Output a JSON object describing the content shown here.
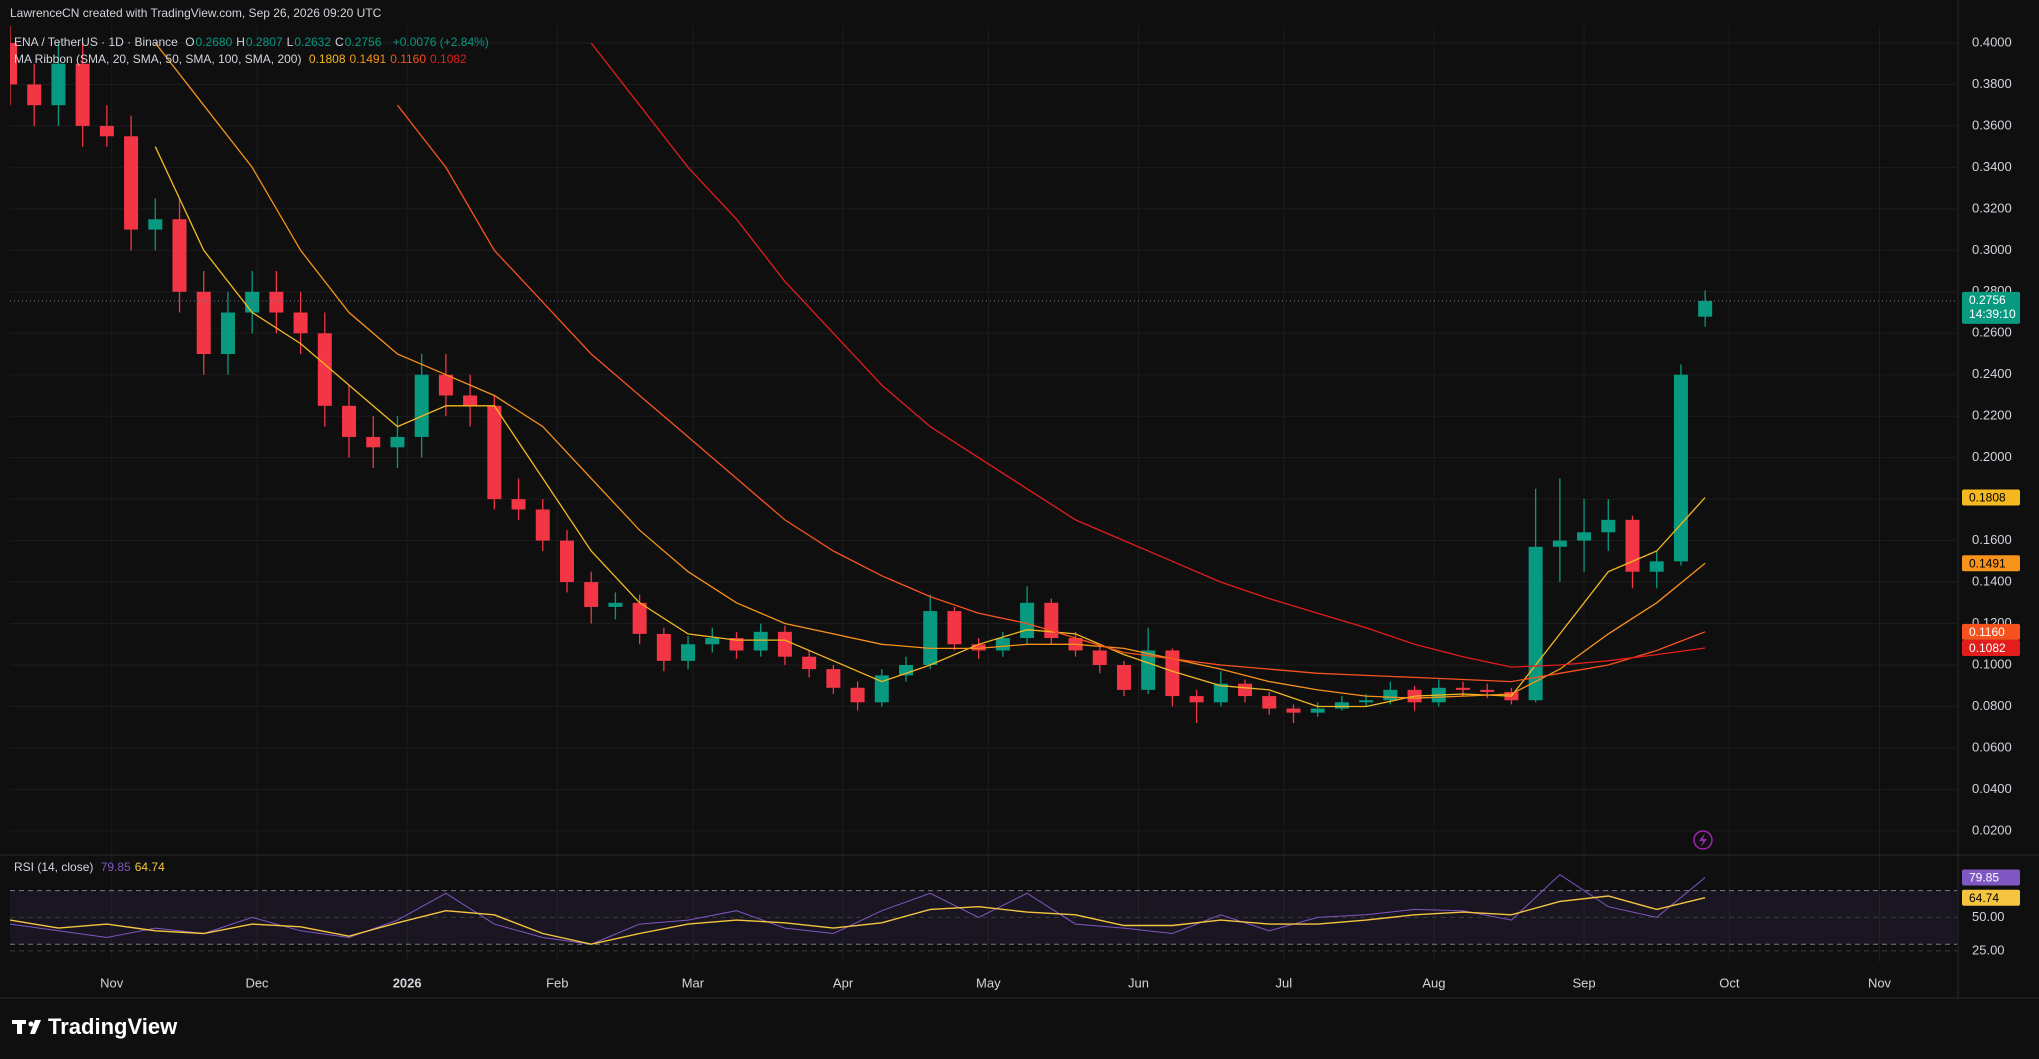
{
  "header": {
    "credit": "LawrenceCN created with TradingView.com, Sep 26, 2026 09:20 UTC"
  },
  "footer": {
    "brand": "TradingView"
  },
  "chart_data": [
    {
      "type": "candlestick",
      "title": "ENA / TetherUS · 1D · Binance",
      "ohlc": [
        {
          "label": "O",
          "value": "0.2680"
        },
        {
          "label": "H",
          "value": "0.2807"
        },
        {
          "label": "L",
          "value": "0.2632"
        },
        {
          "label": "C",
          "value": "0.2756"
        }
      ],
      "change": "+0.0076 (+2.84%)",
      "indicator": "MA Ribbon (SMA, 20, SMA, 50, SMA, 100, SMA, 200)",
      "price_tag": "0.2756",
      "countdown": "14:39:10",
      "up_color": "#089981",
      "down_color": "#f23645",
      "xlim": [
        0,
        402
      ],
      "xticks": [
        {
          "value": 21,
          "label": "Nov"
        },
        {
          "value": 51,
          "label": "Dec"
        },
        {
          "value": 82,
          "label": "2026"
        },
        {
          "value": 113,
          "label": "Feb"
        },
        {
          "value": 141,
          "label": "Mar"
        },
        {
          "value": 172,
          "label": "Apr"
        },
        {
          "value": 202,
          "label": "May"
        },
        {
          "value": 233,
          "label": "Jun"
        },
        {
          "value": 263,
          "label": "Jul"
        },
        {
          "value": 294,
          "label": "Aug"
        },
        {
          "value": 325,
          "label": "Sep"
        },
        {
          "value": 355,
          "label": "Oct"
        },
        {
          "value": 386,
          "label": "Nov"
        }
      ],
      "ylim": [
        0.0098,
        0.4082
      ],
      "yticks": [
        {
          "value": 0.02,
          "label": "0.0200"
        },
        {
          "value": 0.04,
          "label": "0.0400"
        },
        {
          "value": 0.06,
          "label": "0.0600"
        },
        {
          "value": 0.08,
          "label": "0.0800"
        },
        {
          "value": 0.1,
          "label": "0.1000"
        },
        {
          "value": 0.12,
          "label": "0.1200"
        },
        {
          "value": 0.14,
          "label": "0.1400"
        },
        {
          "value": 0.16,
          "label": "0.1600"
        },
        {
          "value": 0.18,
          "label": "0.1800"
        },
        {
          "value": 0.2,
          "label": "0.2000"
        },
        {
          "value": 0.22,
          "label": "0.2200"
        },
        {
          "value": 0.24,
          "label": "0.2400"
        },
        {
          "value": 0.26,
          "label": "0.2600"
        },
        {
          "value": 0.28,
          "label": "0.2800"
        },
        {
          "value": 0.3,
          "label": "0.3000"
        },
        {
          "value": 0.32,
          "label": "0.3200"
        },
        {
          "value": 0.34,
          "label": "0.3400"
        },
        {
          "value": 0.36,
          "label": "0.3600"
        },
        {
          "value": 0.38,
          "label": "0.3800"
        },
        {
          "value": 0.4,
          "label": "0.4000"
        }
      ],
      "grid": true,
      "candles": {
        "x": [
          0,
          5,
          10,
          15,
          20,
          25,
          30,
          35,
          40,
          45,
          50,
          55,
          60,
          65,
          70,
          75,
          80,
          85,
          90,
          95,
          100,
          105,
          110,
          115,
          120,
          125,
          130,
          135,
          140,
          145,
          150,
          155,
          160,
          165,
          170,
          175,
          180,
          185,
          190,
          195,
          200,
          205,
          210,
          215,
          220,
          225,
          230,
          235,
          240,
          245,
          250,
          255,
          260,
          265,
          270,
          275,
          280,
          285,
          290,
          295,
          300,
          305,
          310,
          315,
          320,
          325,
          330,
          335,
          340,
          345,
          350
        ],
        "open": [
          0.4,
          0.38,
          0.37,
          0.39,
          0.36,
          0.355,
          0.31,
          0.315,
          0.28,
          0.25,
          0.27,
          0.28,
          0.27,
          0.26,
          0.225,
          0.21,
          0.205,
          0.21,
          0.24,
          0.23,
          0.225,
          0.18,
          0.175,
          0.16,
          0.14,
          0.128,
          0.13,
          0.115,
          0.102,
          0.11,
          0.113,
          0.107,
          0.116,
          0.104,
          0.098,
          0.089,
          0.082,
          0.095,
          0.1,
          0.126,
          0.11,
          0.107,
          0.113,
          0.13,
          0.113,
          0.107,
          0.1,
          0.088,
          0.107,
          0.085,
          0.082,
          0.091,
          0.085,
          0.079,
          0.077,
          0.079,
          0.082,
          0.083,
          0.088,
          0.082,
          0.089,
          0.088,
          0.087,
          0.083,
          0.157,
          0.16,
          0.164,
          0.17,
          0.145,
          0.15,
          0.268
        ],
        "high": [
          0.41,
          0.39,
          0.4,
          0.4,
          0.37,
          0.365,
          0.325,
          0.325,
          0.29,
          0.28,
          0.29,
          0.29,
          0.28,
          0.27,
          0.235,
          0.22,
          0.22,
          0.25,
          0.25,
          0.24,
          0.23,
          0.19,
          0.18,
          0.165,
          0.145,
          0.135,
          0.134,
          0.118,
          0.114,
          0.118,
          0.116,
          0.12,
          0.119,
          0.107,
          0.1,
          0.092,
          0.098,
          0.104,
          0.134,
          0.128,
          0.113,
          0.116,
          0.138,
          0.132,
          0.116,
          0.11,
          0.102,
          0.118,
          0.108,
          0.088,
          0.097,
          0.093,
          0.087,
          0.081,
          0.082,
          0.085,
          0.086,
          0.092,
          0.09,
          0.093,
          0.092,
          0.091,
          0.089,
          0.185,
          0.19,
          0.18,
          0.18,
          0.172,
          0.155,
          0.245,
          0.2807
        ],
        "low": [
          0.37,
          0.36,
          0.36,
          0.35,
          0.35,
          0.3,
          0.3,
          0.27,
          0.24,
          0.24,
          0.26,
          0.26,
          0.25,
          0.215,
          0.2,
          0.195,
          0.195,
          0.2,
          0.22,
          0.215,
          0.175,
          0.17,
          0.155,
          0.135,
          0.12,
          0.122,
          0.11,
          0.097,
          0.098,
          0.106,
          0.103,
          0.104,
          0.1,
          0.094,
          0.086,
          0.078,
          0.08,
          0.092,
          0.098,
          0.107,
          0.103,
          0.104,
          0.11,
          0.11,
          0.104,
          0.096,
          0.085,
          0.086,
          0.08,
          0.072,
          0.08,
          0.082,
          0.076,
          0.072,
          0.075,
          0.078,
          0.08,
          0.081,
          0.078,
          0.08,
          0.085,
          0.084,
          0.081,
          0.082,
          0.14,
          0.145,
          0.155,
          0.137,
          0.137,
          0.148,
          0.2632
        ],
        "close": [
          0.38,
          0.37,
          0.39,
          0.36,
          0.355,
          0.31,
          0.315,
          0.28,
          0.25,
          0.27,
          0.28,
          0.27,
          0.26,
          0.225,
          0.21,
          0.205,
          0.21,
          0.24,
          0.23,
          0.225,
          0.18,
          0.175,
          0.16,
          0.14,
          0.128,
          0.13,
          0.115,
          0.102,
          0.11,
          0.113,
          0.107,
          0.116,
          0.104,
          0.098,
          0.089,
          0.082,
          0.095,
          0.1,
          0.126,
          0.11,
          0.107,
          0.113,
          0.13,
          0.113,
          0.107,
          0.1,
          0.088,
          0.107,
          0.085,
          0.082,
          0.091,
          0.085,
          0.079,
          0.077,
          0.079,
          0.082,
          0.083,
          0.088,
          0.082,
          0.089,
          0.088,
          0.087,
          0.083,
          0.157,
          0.16,
          0.164,
          0.17,
          0.145,
          0.15,
          0.24,
          0.2756
        ]
      },
      "series": [
        {
          "color": "#f5b81f",
          "tag_text": "#000000",
          "legend_value": "0.1808",
          "x": [
            0,
            10,
            20,
            30,
            40,
            50,
            60,
            70,
            80,
            90,
            100,
            110,
            120,
            130,
            140,
            150,
            160,
            170,
            180,
            190,
            200,
            210,
            220,
            230,
            240,
            250,
            260,
            270,
            280,
            290,
            300,
            310,
            320,
            330,
            340,
            350
          ],
          "values": [
            null,
            null,
            null,
            0.35,
            0.3,
            0.27,
            0.255,
            0.235,
            0.215,
            0.225,
            0.225,
            0.19,
            0.155,
            0.13,
            0.115,
            0.112,
            0.112,
            0.102,
            0.092,
            0.1,
            0.11,
            0.117,
            0.115,
            0.105,
            0.097,
            0.09,
            0.088,
            0.08,
            0.08,
            0.085,
            0.086,
            0.085,
            0.115,
            0.145,
            0.155,
            0.1808
          ]
        },
        {
          "color": "#f7931a",
          "tag_text": "#000000",
          "legend_value": "0.1491",
          "x": [
            0,
            10,
            20,
            30,
            40,
            50,
            60,
            70,
            80,
            90,
            100,
            110,
            120,
            130,
            140,
            150,
            160,
            170,
            180,
            190,
            200,
            210,
            220,
            230,
            240,
            250,
            260,
            270,
            280,
            290,
            300,
            310,
            320,
            330,
            340,
            350
          ],
          "values": [
            null,
            null,
            null,
            0.4,
            0.37,
            0.34,
            0.3,
            0.27,
            0.25,
            0.24,
            0.23,
            0.215,
            0.19,
            0.165,
            0.145,
            0.13,
            0.12,
            0.115,
            0.11,
            0.108,
            0.108,
            0.11,
            0.11,
            0.108,
            0.103,
            0.098,
            0.092,
            0.088,
            0.085,
            0.084,
            0.085,
            0.086,
            0.098,
            0.115,
            0.13,
            0.1491
          ]
        },
        {
          "color": "#f7521e",
          "tag_text": "#ffffff",
          "legend_value": "0.1160",
          "x": [
            0,
            10,
            20,
            30,
            40,
            50,
            60,
            70,
            80,
            90,
            100,
            110,
            120,
            130,
            140,
            150,
            160,
            170,
            180,
            190,
            200,
            210,
            220,
            230,
            240,
            250,
            260,
            270,
            280,
            290,
            300,
            310,
            320,
            330,
            340,
            350
          ],
          "values": [
            null,
            null,
            null,
            null,
            null,
            null,
            null,
            null,
            0.37,
            0.34,
            0.3,
            0.275,
            0.25,
            0.23,
            0.21,
            0.19,
            0.17,
            0.155,
            0.143,
            0.133,
            0.125,
            0.12,
            0.113,
            0.106,
            0.103,
            0.1,
            0.098,
            0.096,
            0.095,
            0.094,
            0.093,
            0.092,
            0.096,
            0.1,
            0.107,
            0.116
          ]
        },
        {
          "color": "#e31c1c",
          "tag_text": "#ffffff",
          "legend_value": "0.1082",
          "x": [
            0,
            10,
            20,
            30,
            40,
            50,
            60,
            70,
            80,
            90,
            100,
            110,
            120,
            130,
            140,
            150,
            160,
            170,
            180,
            190,
            200,
            210,
            220,
            230,
            240,
            250,
            260,
            270,
            280,
            290,
            300,
            310,
            320,
            330,
            340,
            350
          ],
          "values": [
            null,
            null,
            null,
            null,
            null,
            null,
            null,
            null,
            null,
            null,
            null,
            null,
            0.4,
            0.37,
            0.34,
            0.315,
            0.285,
            0.26,
            0.235,
            0.215,
            0.2,
            0.185,
            0.17,
            0.16,
            0.15,
            0.14,
            0.132,
            0.125,
            0.118,
            0.11,
            0.104,
            0.099,
            0.1,
            0.102,
            0.105,
            0.1082
          ]
        }
      ]
    },
    {
      "type": "line",
      "title": "RSI (14, close)",
      "ylim": [
        16.7,
        94.4
      ],
      "yticks": [
        {
          "value": 25,
          "label": "25.00"
        },
        {
          "value": 50,
          "label": "50.00"
        }
      ],
      "bands": [
        30,
        70
      ],
      "series": [
        {
          "color": "#7e57c2",
          "tag_text": "#ffffff",
          "legend_value": "79.85",
          "x": [
            0,
            10,
            20,
            30,
            40,
            50,
            60,
            70,
            80,
            90,
            100,
            110,
            120,
            130,
            140,
            150,
            160,
            170,
            180,
            190,
            200,
            210,
            220,
            230,
            240,
            250,
            260,
            270,
            280,
            290,
            300,
            310,
            320,
            330,
            340,
            350
          ],
          "values": [
            45,
            40,
            35,
            42,
            38,
            50,
            40,
            35,
            48,
            68,
            45,
            35,
            30,
            45,
            48,
            55,
            42,
            38,
            55,
            68,
            50,
            68,
            45,
            42,
            38,
            52,
            40,
            50,
            52,
            56,
            55,
            48,
            82,
            58,
            50,
            79.85
          ]
        },
        {
          "color": "#f5c542",
          "tag_text": "#000000",
          "legend_value": "64.74",
          "x": [
            0,
            10,
            20,
            30,
            40,
            50,
            60,
            70,
            80,
            90,
            100,
            110,
            120,
            130,
            140,
            150,
            160,
            170,
            180,
            190,
            200,
            210,
            220,
            230,
            240,
            250,
            260,
            270,
            280,
            290,
            300,
            310,
            320,
            330,
            340,
            350
          ],
          "values": [
            48,
            42,
            45,
            40,
            38,
            45,
            43,
            36,
            46,
            55,
            52,
            38,
            30,
            38,
            45,
            48,
            46,
            42,
            46,
            56,
            58,
            54,
            52,
            44,
            44,
            48,
            45,
            45,
            48,
            52,
            54,
            52,
            62,
            66,
            56,
            64.74
          ]
        }
      ]
    }
  ]
}
